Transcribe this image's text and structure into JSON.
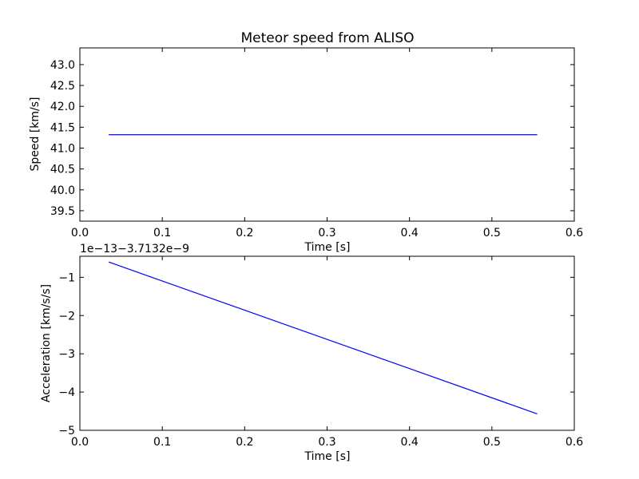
{
  "chart_data": [
    {
      "type": "line",
      "title": "Meteor speed from  ALISO",
      "xlabel": "Time [s]",
      "ylabel": "Speed [km/s]",
      "xlim": [
        0.0,
        0.6
      ],
      "ylim": [
        39.25,
        43.4
      ],
      "xticks": [
        "0.0",
        "0.1",
        "0.2",
        "0.3",
        "0.4",
        "0.5",
        "0.6"
      ],
      "yticks": [
        "39.5",
        "40.0",
        "40.5",
        "41.0",
        "41.5",
        "42.0",
        "42.5",
        "43.0"
      ],
      "grid": false,
      "color": "#0000ff",
      "series": [
        {
          "x": [
            0.035,
            0.555
          ],
          "y": [
            41.32,
            41.32
          ]
        }
      ]
    },
    {
      "type": "line",
      "title": "",
      "offset_text": "1e−13−3.7132e−9",
      "xlabel": "Time [s]",
      "ylabel": "Acceleration [km/s/s]",
      "xlim": [
        0.0,
        0.6
      ],
      "ylim": [
        -5,
        -0.45
      ],
      "xticks": [
        "0.0",
        "0.1",
        "0.2",
        "0.3",
        "0.4",
        "0.5",
        "0.6"
      ],
      "yticks": [
        "−5",
        "−4",
        "−3",
        "−2",
        "−1"
      ],
      "grid": false,
      "color": "#0000ff",
      "series": [
        {
          "x": [
            0.035,
            0.555
          ],
          "y": [
            -0.6,
            -4.57
          ]
        }
      ]
    }
  ]
}
